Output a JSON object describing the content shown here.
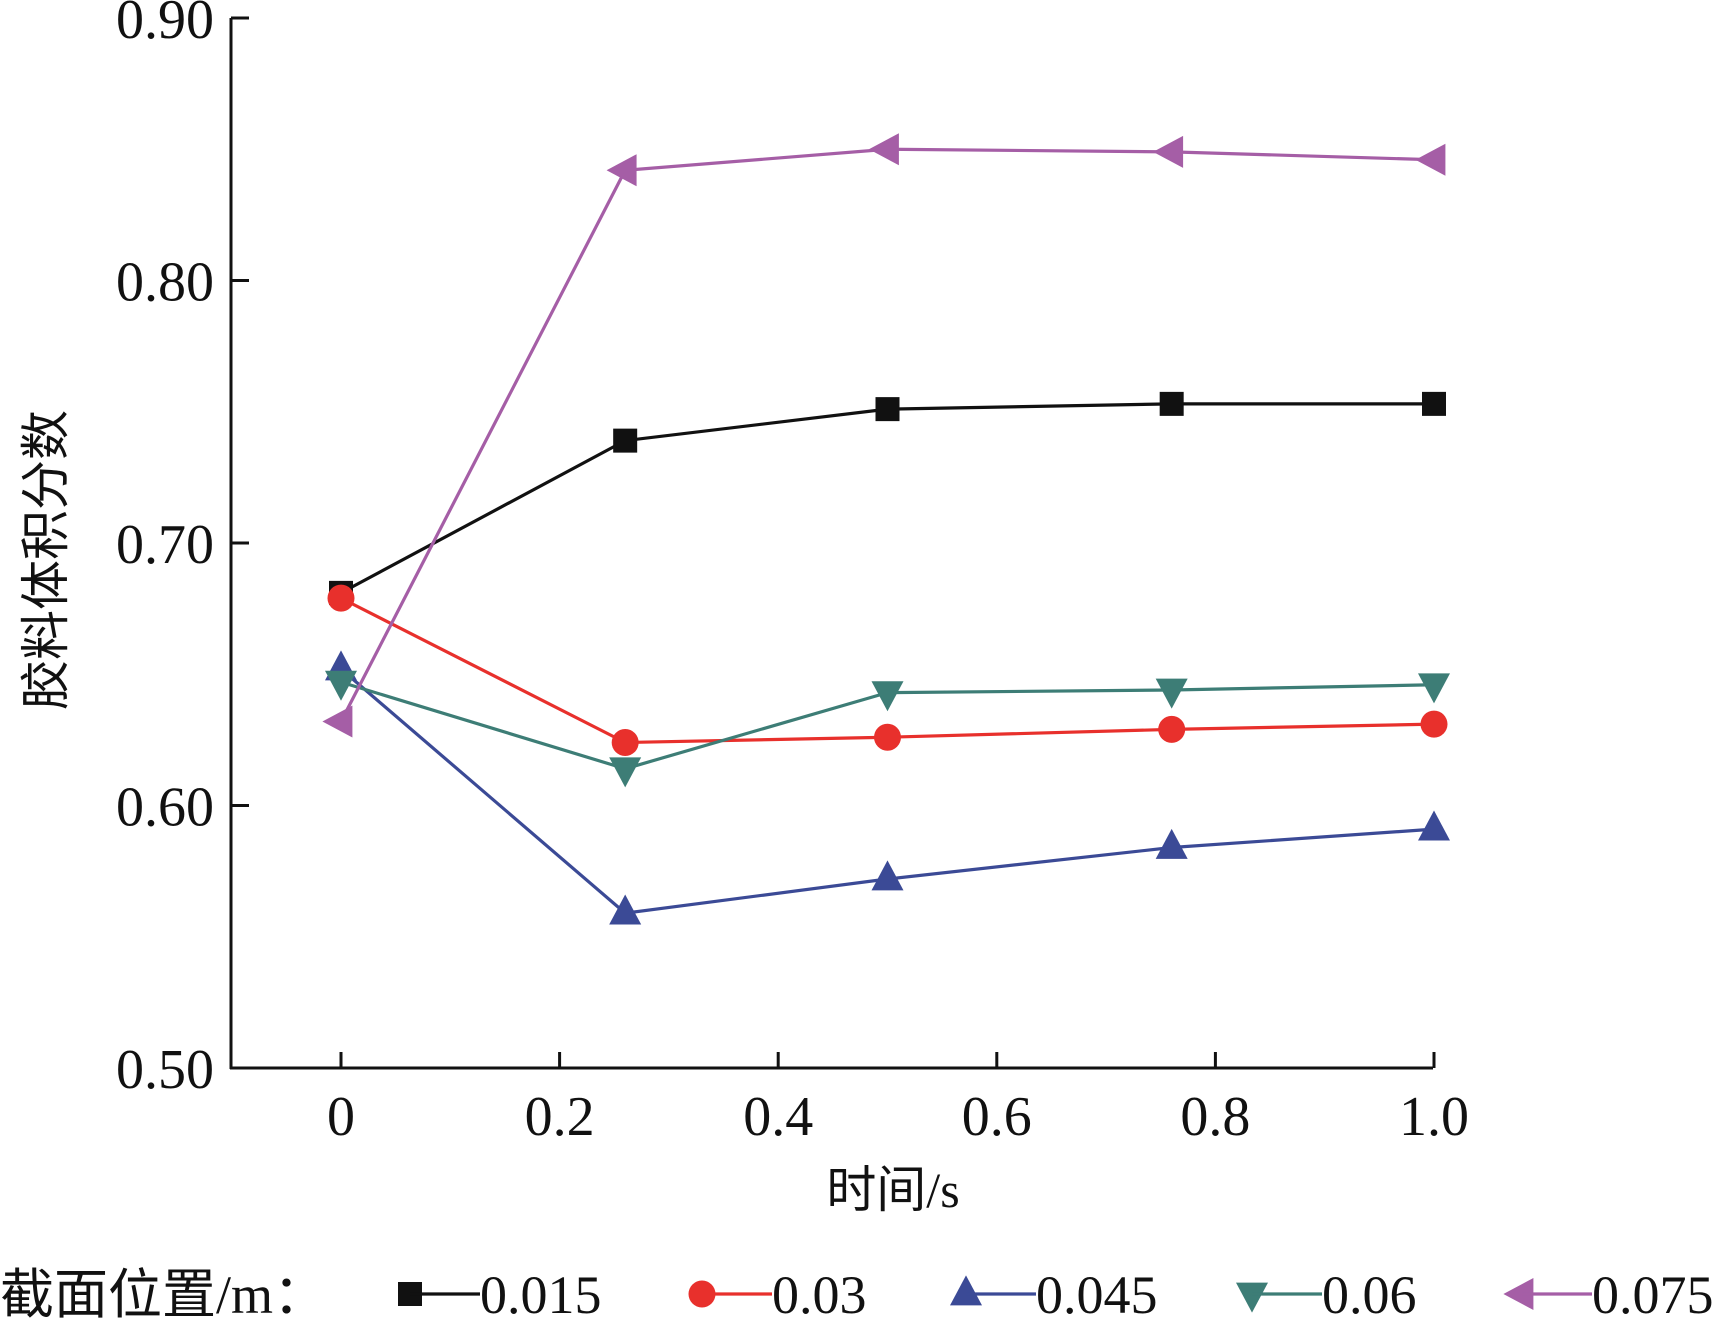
{
  "chart_data": {
    "type": "line",
    "title": "",
    "xlabel": "时间/s",
    "ylabel": "胶料体积分数",
    "xlim": [
      -0.1,
      1.0
    ],
    "ylim": [
      0.5,
      0.9
    ],
    "x_ticks": [
      0,
      0.2,
      0.4,
      0.6,
      0.8,
      1.0
    ],
    "x_tick_labels": [
      "0",
      "0.2",
      "0.4",
      "0.6",
      "0.8",
      "1.0"
    ],
    "y_ticks": [
      0.5,
      0.6,
      0.7,
      0.8,
      0.9
    ],
    "y_tick_labels": [
      "0.50",
      "0.60",
      "0.70",
      "0.80",
      "0.90"
    ],
    "grid": false,
    "legend_title": "截面位置/m：",
    "legend_position": "bottom",
    "series": [
      {
        "name": "0.015",
        "marker": "square",
        "color": "#111111",
        "x": [
          0,
          0.26,
          0.5,
          0.76,
          1.0
        ],
        "y": [
          0.681,
          0.739,
          0.751,
          0.753,
          0.753
        ]
      },
      {
        "name": "0.03",
        "marker": "circle",
        "color": "#e8302c",
        "x": [
          0,
          0.26,
          0.5,
          0.76,
          1.0
        ],
        "y": [
          0.679,
          0.624,
          0.626,
          0.629,
          0.631
        ]
      },
      {
        "name": "0.045",
        "marker": "triangle-up",
        "color": "#3b4a96",
        "x": [
          0,
          0.26,
          0.5,
          0.76,
          1.0
        ],
        "y": [
          0.652,
          0.559,
          0.572,
          0.584,
          0.591
        ]
      },
      {
        "name": "0.06",
        "marker": "triangle-down",
        "color": "#3d7d76",
        "x": [
          0,
          0.26,
          0.5,
          0.76,
          1.0
        ],
        "y": [
          0.647,
          0.614,
          0.643,
          0.644,
          0.646
        ]
      },
      {
        "name": "0.075",
        "marker": "triangle-left",
        "color": "#a55ea6",
        "x": [
          0,
          0.26,
          0.5,
          0.76,
          1.0
        ],
        "y": [
          0.632,
          0.842,
          0.85,
          0.849,
          0.846
        ]
      }
    ]
  }
}
